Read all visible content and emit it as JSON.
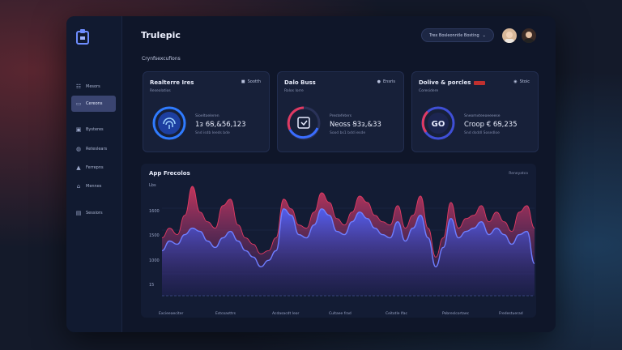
{
  "app": {
    "title": "Trulepic"
  },
  "sidebar": {
    "items": [
      {
        "label": "Mesors",
        "icon": "grid-icon"
      },
      {
        "label": "Cereons",
        "icon": "folder-icon",
        "active": true
      },
      {
        "label": "Bysteres",
        "icon": "monitor-icon"
      },
      {
        "label": "Reteslears",
        "icon": "globe-icon"
      },
      {
        "label": "Ferrepns",
        "icon": "alert-icon"
      },
      {
        "label": "Mennes",
        "icon": "home-icon"
      },
      {
        "label": "Sessiors",
        "icon": "layers-icon"
      }
    ]
  },
  "header": {
    "subtitle": "Crynfsexcufions",
    "select_label": "Trex Bosleonntle Bosting"
  },
  "cards": [
    {
      "title": "Realterre Ires",
      "subtitle": "Reseolatios",
      "badge": "Sootth",
      "value_label": "Sioeltoeleren",
      "value": "1ᴈ 6Ꞩ,&56,123",
      "value_sub": "Snd isdb Ieeds bde"
    },
    {
      "title": "Dalo Buss",
      "subtitle": "Rolos lorre",
      "badge": "Ensris",
      "value_label": "Prestefeters",
      "value": "Neoss Ꞩ3ᴈ,&33",
      "value_sub": "Sood bs1 bdd iesde"
    },
    {
      "title": "Dolive & porcles",
      "subtitle": "Coresidere",
      "badge": "Stoic",
      "value_label": "Sneomvteeoeeeese",
      "value": "Croop € 6Ꞩ,235",
      "value_sub": "Snd dsddl Sosedloe"
    }
  ],
  "chart_data": {
    "type": "area",
    "title": "App Frecolos",
    "legend": "Reneyatco",
    "y_ticks": [
      "Lbs",
      "1600",
      "1500",
      "1000",
      "15"
    ],
    "x_ticks": [
      "Excieeaeciter",
      "Estcoasttrs",
      "Acdasacdt leor",
      "Cultaee frad",
      "Ceitotle Ifac",
      "Pobreslcortaec",
      "Fredestuerad"
    ],
    "ylim": [
      0,
      1700
    ],
    "series": [
      {
        "values": [
          900,
          1050,
          950,
          1250,
          1700,
          1300,
          1150,
          1050,
          1400,
          1500,
          1100,
          900,
          800,
          650,
          700,
          900,
          1500,
          1350,
          1100,
          1050,
          1300,
          1600,
          1450,
          1200,
          1100,
          1300,
          1550,
          1450,
          1250,
          1150,
          1100,
          1400,
          1050,
          1250,
          1550,
          1050,
          600,
          900,
          1450,
          1050,
          1200,
          1250,
          1400,
          1150,
          1300,
          1150,
          1000,
          1300,
          1400,
          1050
        ]
      },
      {
        "values": [
          700,
          850,
          800,
          950,
          1050,
          1000,
          850,
          750,
          900,
          1000,
          850,
          700,
          600,
          450,
          550,
          700,
          1350,
          1250,
          950,
          900,
          1100,
          1350,
          1250,
          1000,
          950,
          1150,
          1300,
          1200,
          1050,
          950,
          900,
          1150,
          850,
          1050,
          1250,
          900,
          450,
          750,
          1200,
          900,
          1000,
          1050,
          1150,
          950,
          1050,
          950,
          800,
          950,
          1000,
          500
        ]
      }
    ],
    "colors": {
      "hot": "#e03a62",
      "cool": "#3a55d9",
      "line": "#6d7dff"
    }
  }
}
